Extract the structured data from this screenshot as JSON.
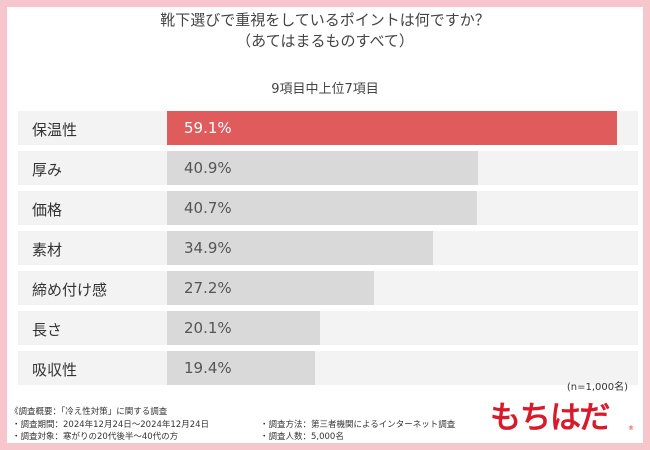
{
  "chart_data": {
    "type": "bar",
    "orientation": "horizontal",
    "title": "靴下選びで重視をしているポイントは何ですか？",
    "subtitle": "（あてはまるものすべて）",
    "note": "9項目中上位7項目",
    "categories": [
      "保温性",
      "厚み",
      "価格",
      "素材",
      "締め付け感",
      "長さ",
      "吸収性"
    ],
    "values": [
      59.1,
      40.9,
      40.7,
      34.9,
      27.2,
      20.1,
      19.4
    ],
    "value_labels": [
      "59.1%",
      "40.9%",
      "40.7%",
      "34.9%",
      "27.2%",
      "20.1%",
      "19.4%"
    ],
    "unit": "%",
    "xlim": [
      0,
      59.1
    ],
    "colors": {
      "highlight": "#e05c5c",
      "bar": "#d9d9d9",
      "band": "#f3f3f3"
    },
    "sample": "(n=1,000名)"
  },
  "footer": {
    "survey_outline": "《調査概要：「冷え性対策」に関する調査",
    "period": "・調査期間：2024年12月24日～2024年12月24日",
    "target": "・調査対象：寒がりの20代後半～40代の方",
    "method": "・調査方法：第三者機関によるインターネット調査",
    "count": "・調査人数：5,000名"
  },
  "logo": {
    "text": "もちはだ",
    "mark": "®"
  }
}
